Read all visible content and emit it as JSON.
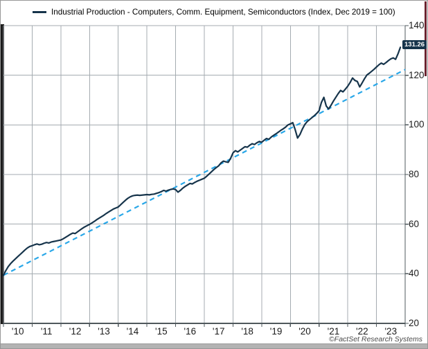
{
  "legend": {
    "series_label": "Industrial Production - Computers, Comm. Equipment, Semiconductors (Index, Dec 2019 = 100)",
    "swatch_color": "#16344b"
  },
  "value_label": {
    "text": "131.26"
  },
  "footer": {
    "copyright": "©FactSet Research Systems"
  },
  "colors": {
    "series": "#16344b",
    "trend": "#29a7e8",
    "grid": "#a4abb0",
    "axis": "#4f585c",
    "tick_text": "#1a1a1a",
    "label_box_bg": "#16344b",
    "label_box_fg": "#ffffff",
    "left_bar": "#1b1b1b",
    "right_edge_bar": "#6b2430",
    "footer_band": "#b3b3b3"
  },
  "chart_data": {
    "type": "line",
    "title": "Industrial Production - Computers, Comm. Equipment, Semiconductors (Index, Dec 2019 = 100)",
    "frequency": "monthly",
    "x_start": "2010-01",
    "x_end": "2023-11",
    "x_tick_labels": [
      "'10",
      "'11",
      "'12",
      "'13",
      "'14",
      "'15",
      "'16",
      "'17",
      "'18",
      "'19",
      "'20",
      "'21",
      "'22",
      "'23"
    ],
    "y_ticks": [
      140,
      120,
      100,
      80,
      60,
      40,
      20
    ],
    "ylim": [
      20,
      140
    ],
    "grid": true,
    "legend_position": "top-left",
    "last_value": 131.26,
    "series": [
      {
        "name": "Industrial Production - Computers, Comm. Equipment, Semiconductors",
        "style": "solid",
        "color": "#16344b",
        "values": [
          39.4,
          41.3,
          42.9,
          44.1,
          45.1,
          46.0,
          46.9,
          47.8,
          48.7,
          49.6,
          50.4,
          51.0,
          51.3,
          51.7,
          52.0,
          51.7,
          51.9,
          52.3,
          52.6,
          52.4,
          52.8,
          53.0,
          53.2,
          53.4,
          53.6,
          54.1,
          54.7,
          55.3,
          55.9,
          56.4,
          56.2,
          56.9,
          57.6,
          58.3,
          58.9,
          59.4,
          59.9,
          60.5,
          61.1,
          61.8,
          62.4,
          63.0,
          63.6,
          64.3,
          64.9,
          65.5,
          66.1,
          66.5,
          66.9,
          67.8,
          68.7,
          69.6,
          70.4,
          71.0,
          71.4,
          71.6,
          71.7,
          71.6,
          71.7,
          71.8,
          71.9,
          71.8,
          72.0,
          72.1,
          72.4,
          72.7,
          73.1,
          73.6,
          73.3,
          73.7,
          74.0,
          74.2,
          73.9,
          72.9,
          73.6,
          74.5,
          75.2,
          75.8,
          76.4,
          76.2,
          76.8,
          77.3,
          77.7,
          78.1,
          78.5,
          79.3,
          80.2,
          81.1,
          82.0,
          82.8,
          83.5,
          84.7,
          85.4,
          85.1,
          84.9,
          86.5,
          88.7,
          89.6,
          89.1,
          89.8,
          90.5,
          91.2,
          91.0,
          91.8,
          92.4,
          92.1,
          92.8,
          93.3,
          93.0,
          93.8,
          94.5,
          94.2,
          95.1,
          95.8,
          96.4,
          97.1,
          97.8,
          98.4,
          99.1,
          100.0,
          100.4,
          100.9,
          98.1,
          94.7,
          96.1,
          98.3,
          100.1,
          101.3,
          102.1,
          102.9,
          103.7,
          104.6,
          105.7,
          109.1,
          111.1,
          107.6,
          106.4,
          107.9,
          109.6,
          111.1,
          112.6,
          113.9,
          113.3,
          114.4,
          115.6,
          117.1,
          118.9,
          117.9,
          117.5,
          115.3,
          116.9,
          118.6,
          120.1,
          120.8,
          121.6,
          122.4,
          123.3,
          124.2,
          124.9,
          124.4,
          125.1,
          125.9,
          126.6,
          127.0,
          126.4,
          128.6,
          131.26
        ]
      },
      {
        "name": "Linear trend",
        "style": "dashed",
        "color": "#29a7e8",
        "endpoint_values": [
          39.4,
          122.3
        ]
      }
    ]
  }
}
